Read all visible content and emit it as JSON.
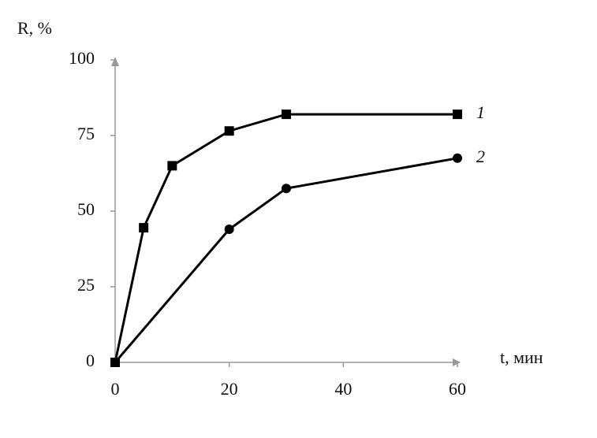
{
  "chart_data": {
    "type": "line",
    "x_label": "t, мин",
    "y_label": "R, %",
    "xlim": [
      0,
      60
    ],
    "xticks": [
      0,
      20,
      40,
      60
    ],
    "ylim": [
      0,
      100
    ],
    "yticks": [
      0,
      25,
      50,
      75,
      100
    ],
    "axis_color": "#999999",
    "series": [
      {
        "name": "1",
        "color": "#000000",
        "marker": "square",
        "x": [
          0,
          5,
          10,
          20,
          30,
          60
        ],
        "values": [
          0,
          44.5,
          65,
          76.5,
          82,
          82
        ]
      },
      {
        "name": "2",
        "color": "#000000",
        "marker": "circle",
        "x": [
          0,
          20,
          30,
          60
        ],
        "values": [
          0,
          44,
          57.5,
          67.5
        ]
      }
    ]
  }
}
